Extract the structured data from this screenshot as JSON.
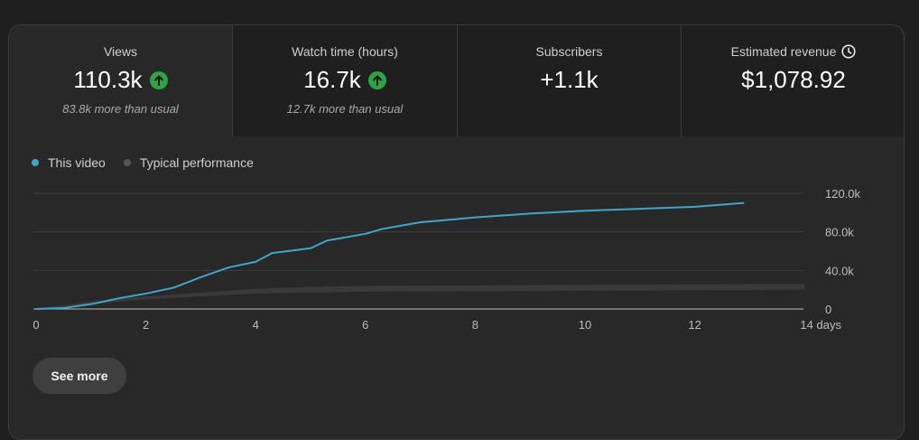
{
  "metrics": [
    {
      "label": "Views",
      "value": "110.3k",
      "sub": "83.8k more than usual",
      "trend_icon": "arrow-up-circle-icon"
    },
    {
      "label": "Watch time (hours)",
      "value": "16.7k",
      "sub": "12.7k more than usual",
      "trend_icon": "arrow-up-circle-icon"
    },
    {
      "label": "Subscribers",
      "value": "+1.1k",
      "sub": ""
    },
    {
      "label": "Estimated revenue",
      "value": "$1,078.92",
      "sub": "",
      "label_icon": "clock-icon"
    }
  ],
  "legend": {
    "this_video": "This video",
    "typical": "Typical performance"
  },
  "colors": {
    "this_video": "#3ea6c9",
    "typical": "#555555",
    "trend_up": "#2ba640"
  },
  "see_more_label": "See more",
  "chart_data": {
    "type": "line",
    "xlim": [
      0,
      14
    ],
    "ylim": [
      0,
      120000
    ],
    "x_ticks": [
      "0",
      "2",
      "4",
      "6",
      "8",
      "10",
      "12",
      "14 days"
    ],
    "x_tick_values": [
      0,
      2,
      4,
      6,
      8,
      10,
      12,
      14
    ],
    "y_ticks": [
      "0",
      "40.0k",
      "80.0k",
      "120.0k"
    ],
    "y_tick_values": [
      0,
      40000,
      80000,
      120000
    ],
    "grid": true,
    "series": [
      {
        "name": "This video",
        "x": [
          0,
          0.5,
          1,
          1.5,
          2,
          2.5,
          3,
          3.5,
          4,
          4.3,
          5,
          5.3,
          6,
          6.3,
          7,
          8,
          9,
          10,
          11,
          12,
          12.9
        ],
        "y": [
          0,
          1000,
          5000,
          11000,
          16000,
          22000,
          33000,
          43000,
          49000,
          58000,
          63000,
          71000,
          78000,
          83000,
          90000,
          95000,
          99000,
          102000,
          104000,
          106000,
          110000
        ]
      }
    ],
    "typical_band": {
      "name": "Typical performance",
      "x": [
        0,
        1,
        2,
        3,
        4,
        5,
        6,
        8,
        10,
        12,
        14
      ],
      "lower": [
        0,
        5000,
        10000,
        13000,
        16000,
        17000,
        18000,
        18500,
        19000,
        19500,
        20000
      ],
      "upper": [
        0,
        8000,
        13000,
        17000,
        21000,
        23000,
        24000,
        24500,
        25000,
        25500,
        26000
      ]
    }
  }
}
